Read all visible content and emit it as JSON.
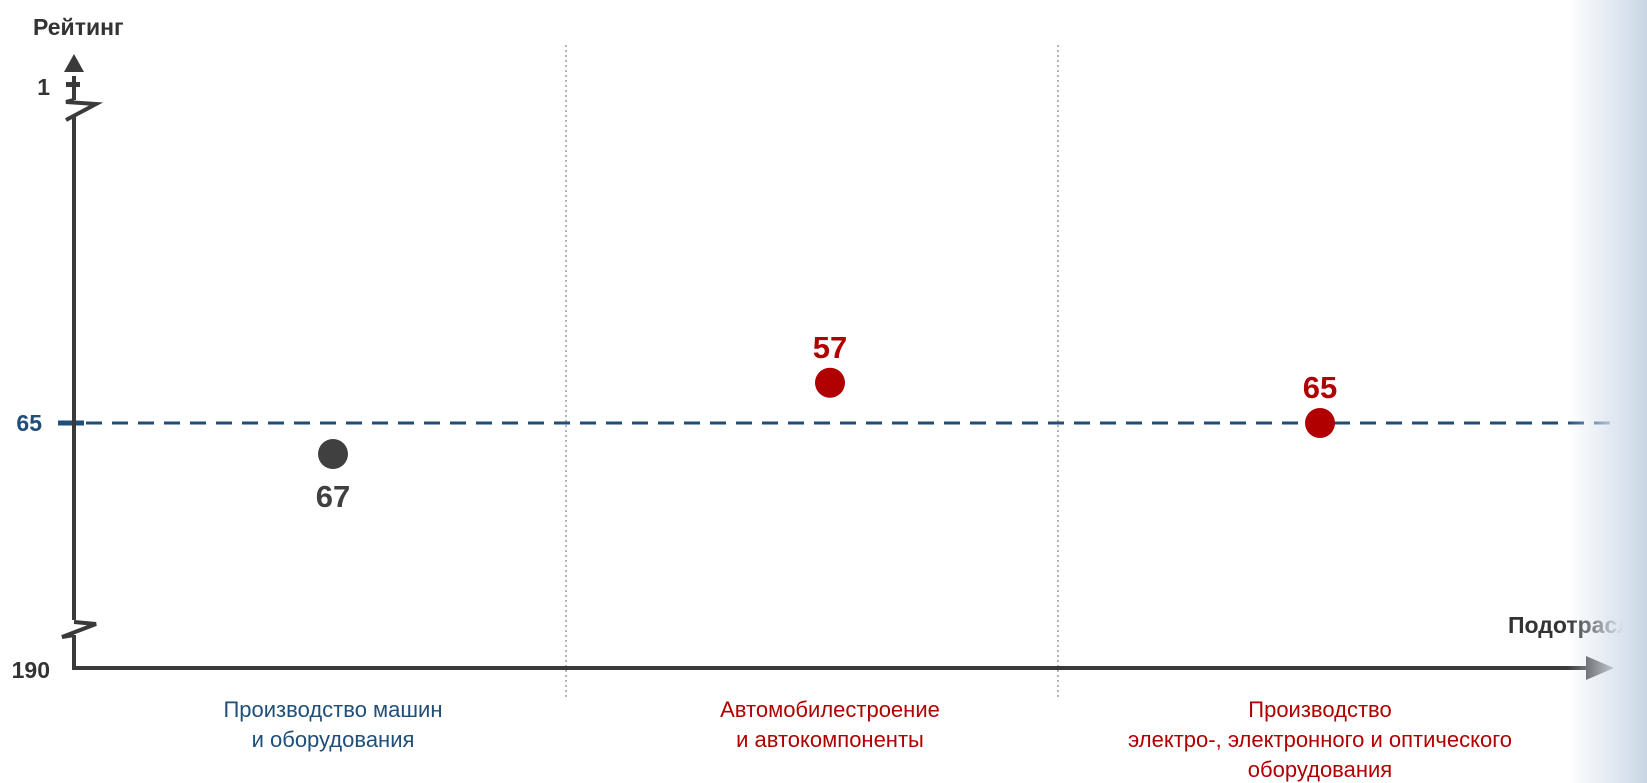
{
  "colors": {
    "axis": "#3a3a3a",
    "threshold": "#1f4e79",
    "highlight": "#b00000",
    "neutral": "#404040",
    "divider": "#9a9a9a"
  },
  "chart_data": {
    "type": "scatter",
    "title": "",
    "ylabel": "Рейтинг",
    "xlabel": "Подотрасли",
    "y_axis": {
      "inverted": true,
      "broken": true,
      "min": 1,
      "max": 190,
      "tick_labels": [
        "1",
        "65",
        "190"
      ]
    },
    "reference_line": {
      "value": 65,
      "label": "65",
      "style": "dashed"
    },
    "categories": [
      {
        "lines": [
          "Производство машин",
          "и оборудования"
        ],
        "color": "#1f4e79"
      },
      {
        "lines": [
          "Автомобилестроение",
          "и автокомпоненты"
        ],
        "color": "#b00000"
      },
      {
        "lines": [
          "Производство",
          "электро-, электронного и оптического",
          "оборудования"
        ],
        "color": "#b00000"
      }
    ],
    "points": [
      {
        "category": 0,
        "value": 67,
        "label": "67",
        "color": "#404040",
        "label_position": "below"
      },
      {
        "category": 1,
        "value": 57,
        "label": "57",
        "color": "#b00000",
        "label_position": "above"
      },
      {
        "category": 2,
        "value": 65,
        "label": "65",
        "color": "#b00000",
        "label_position": "above"
      }
    ],
    "grid": false,
    "legend": "none"
  }
}
